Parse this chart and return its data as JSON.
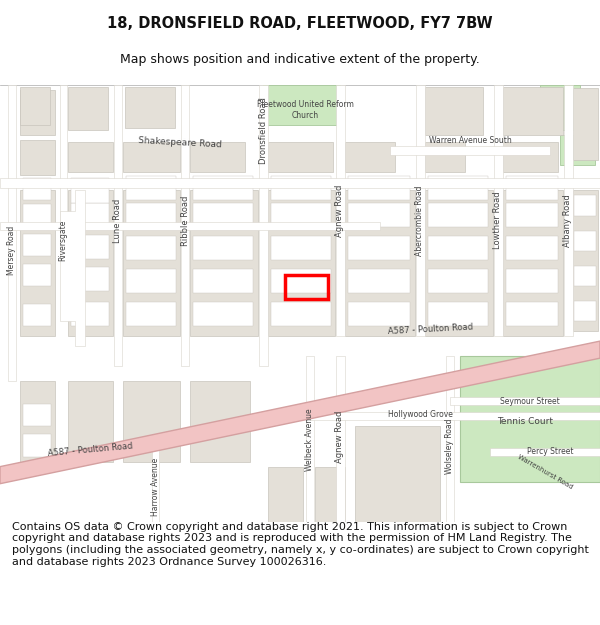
{
  "title": "18, DRONSFIELD ROAD, FLEETWOOD, FY7 7BW",
  "subtitle": "Map shows position and indicative extent of the property.",
  "copyright_text": "Contains OS data © Crown copyright and database right 2021. This information is subject to Crown copyright and database rights 2023 and is reproduced with the permission of HM Land Registry. The polygons (including the associated geometry, namely x, y co-ordinates) are subject to Crown copyright and database rights 2023 Ordnance Survey 100026316.",
  "title_fontsize": 10.5,
  "subtitle_fontsize": 9,
  "copyright_fontsize": 8,
  "map_bg": "#f5f3ef",
  "road_white": "#ffffff",
  "road_outline": "#d8d4cc",
  "road_major": "#f2c4c4",
  "road_major_outline": "#d4a0a0",
  "bld_fill": "#e4e0d8",
  "bld_edge": "#c8c4bc",
  "green_fill": "#cce8c0",
  "green_edge": "#a8c89c",
  "highlight": "#ff0000",
  "text_dark": "#444444",
  "white": "#ffffff",
  "header_bg": "#ffffff",
  "label_size": 6,
  "label_size_road": 6.5
}
